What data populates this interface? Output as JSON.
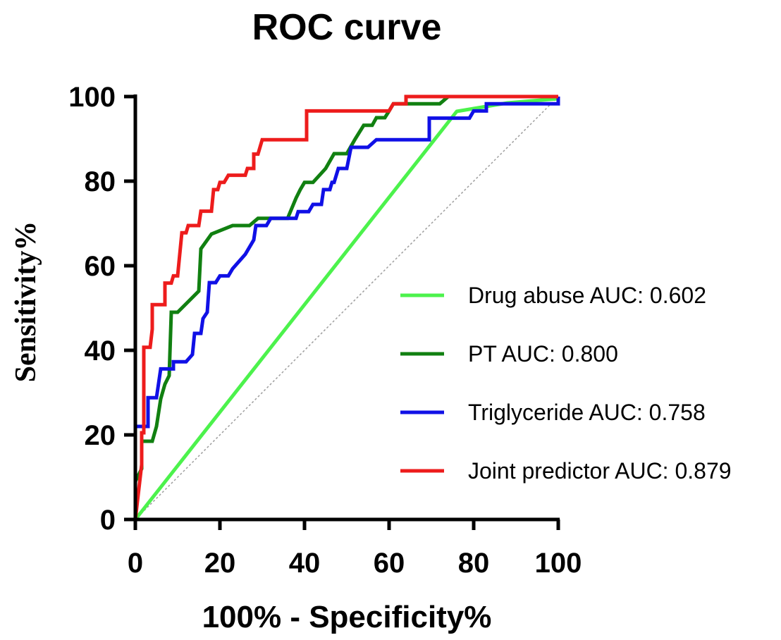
{
  "chart_data": {
    "type": "line",
    "title": "ROC curve",
    "xlabel": "100% - Specificity%",
    "ylabel": "Sensitivity%",
    "xlim": [
      0,
      100
    ],
    "ylim": [
      0,
      100
    ],
    "xticks": [
      "0",
      "20",
      "40",
      "60",
      "80",
      "100"
    ],
    "yticks": [
      "0",
      "20",
      "40",
      "60",
      "80",
      "100"
    ],
    "reference_line": {
      "from": [
        0,
        0
      ],
      "to": [
        100,
        100
      ],
      "color": "#9e9e9e",
      "style": "dotted"
    },
    "legend_position": "right",
    "series": [
      {
        "name": "Drug abuse AUC: 0.602",
        "color": "#4cf24c",
        "step": false,
        "points": [
          [
            0,
            0
          ],
          [
            76,
            96.5
          ],
          [
            82,
            97.5
          ],
          [
            88,
            98.5
          ],
          [
            100,
            99.5
          ]
        ]
      },
      {
        "name": "PT AUC: 0.800",
        "color": "#118011",
        "step": true,
        "points": [
          [
            0,
            0
          ],
          [
            0,
            9
          ],
          [
            1.5,
            12
          ],
          [
            1.5,
            18.5
          ],
          [
            4,
            18.5
          ],
          [
            5,
            22
          ],
          [
            6,
            28.5
          ],
          [
            7,
            32
          ],
          [
            8,
            34
          ],
          [
            8.5,
            49
          ],
          [
            10,
            49
          ],
          [
            15,
            54
          ],
          [
            15.5,
            64
          ],
          [
            18,
            67.5
          ],
          [
            23,
            69.5
          ],
          [
            27,
            69.5
          ],
          [
            29,
            71.2
          ],
          [
            36,
            71.2
          ],
          [
            38,
            76
          ],
          [
            39,
            78
          ],
          [
            40,
            79.7
          ],
          [
            42,
            79.7
          ],
          [
            45,
            83
          ],
          [
            47,
            86.5
          ],
          [
            50,
            86.5
          ],
          [
            52,
            90
          ],
          [
            54,
            93.2
          ],
          [
            56,
            93.2
          ],
          [
            57,
            95
          ],
          [
            59,
            95
          ],
          [
            60,
            96.6
          ],
          [
            61,
            98.3
          ],
          [
            72,
            98.3
          ],
          [
            74,
            100
          ],
          [
            100,
            100
          ]
        ]
      },
      {
        "name": "Triglyceride AUC: 0.758",
        "color": "#1010e6",
        "step": true,
        "points": [
          [
            0,
            0
          ],
          [
            0,
            22
          ],
          [
            3,
            22
          ],
          [
            3,
            28.8
          ],
          [
            5,
            28.8
          ],
          [
            6,
            35.6
          ],
          [
            9,
            35.6
          ],
          [
            9,
            37.3
          ],
          [
            12,
            37.3
          ],
          [
            13.5,
            39
          ],
          [
            14,
            44
          ],
          [
            15.5,
            44
          ],
          [
            16,
            47.5
          ],
          [
            17,
            49
          ],
          [
            17.5,
            56
          ],
          [
            19,
            56
          ],
          [
            20,
            57.6
          ],
          [
            22,
            57.6
          ],
          [
            23,
            59.3
          ],
          [
            26,
            62.7
          ],
          [
            28,
            66.1
          ],
          [
            28.5,
            69.5
          ],
          [
            31,
            69.5
          ],
          [
            32,
            71.2
          ],
          [
            38,
            71.2
          ],
          [
            38.5,
            72.8
          ],
          [
            41,
            72.8
          ],
          [
            42,
            74.5
          ],
          [
            44,
            74.5
          ],
          [
            44.5,
            78
          ],
          [
            46,
            78
          ],
          [
            46.5,
            79.7
          ],
          [
            47,
            79.7
          ],
          [
            48,
            83
          ],
          [
            50,
            83
          ],
          [
            51,
            88
          ],
          [
            55,
            88
          ],
          [
            57,
            89.8
          ],
          [
            69.5,
            89.8
          ],
          [
            69.5,
            94.9
          ],
          [
            79,
            94.9
          ],
          [
            80,
            96.6
          ],
          [
            83,
            96.6
          ],
          [
            83,
            98.3
          ],
          [
            100,
            98.3
          ],
          [
            100,
            100
          ]
        ]
      },
      {
        "name": "Joint predictor AUC: 0.879",
        "color": "#ed1c1c",
        "step": true,
        "points": [
          [
            0,
            0
          ],
          [
            1.5,
            13
          ],
          [
            1.5,
            20.5
          ],
          [
            2,
            20.5
          ],
          [
            2,
            40.7
          ],
          [
            3.5,
            40.7
          ],
          [
            4,
            45
          ],
          [
            4,
            50.8
          ],
          [
            7,
            50.8
          ],
          [
            7,
            55.9
          ],
          [
            8.5,
            55.9
          ],
          [
            9,
            57.6
          ],
          [
            10,
            57.6
          ],
          [
            10.5,
            62.7
          ],
          [
            11,
            67.8
          ],
          [
            12,
            67.8
          ],
          [
            12.5,
            69.5
          ],
          [
            15,
            69.5
          ],
          [
            15.5,
            72.9
          ],
          [
            18,
            72.9
          ],
          [
            18.5,
            78
          ],
          [
            19.5,
            78
          ],
          [
            20,
            79.7
          ],
          [
            21,
            79.7
          ],
          [
            22,
            81.4
          ],
          [
            26,
            81.4
          ],
          [
            26.5,
            83
          ],
          [
            28,
            83
          ],
          [
            28,
            86.4
          ],
          [
            29,
            86.4
          ],
          [
            30,
            89.8
          ],
          [
            40.5,
            89.8
          ],
          [
            40.5,
            96.6
          ],
          [
            60,
            96.6
          ],
          [
            61,
            98.3
          ],
          [
            64,
            98.3
          ],
          [
            64,
            100
          ],
          [
            100,
            100
          ]
        ]
      }
    ]
  }
}
